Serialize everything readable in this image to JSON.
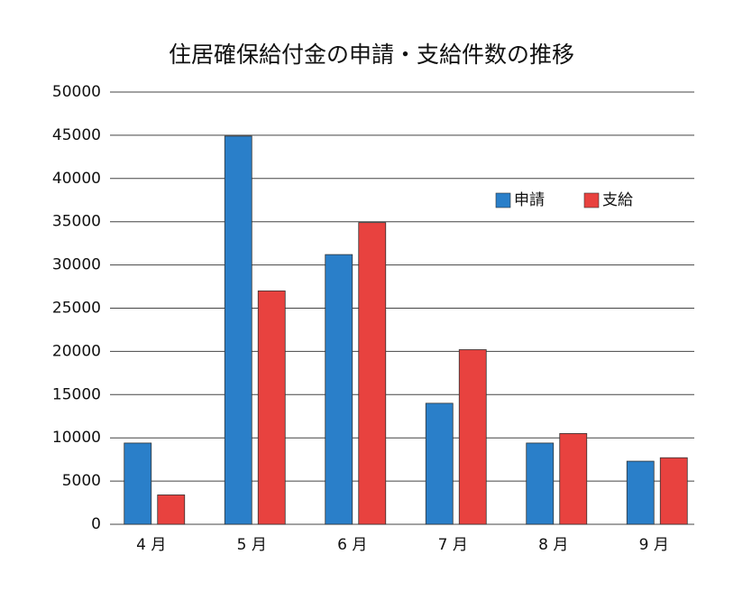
{
  "chart_data": {
    "type": "bar",
    "title": "住居確保給付金の申請・支給件数の推移",
    "categories": [
      "4 月",
      "5 月",
      "6 月",
      "7 月",
      "8 月",
      "9 月"
    ],
    "series": [
      {
        "name": "申請",
        "color": "#2a7fc9",
        "values": [
          9400,
          44900,
          31200,
          14000,
          9400,
          7300
        ]
      },
      {
        "name": "支給",
        "color": "#e8423f",
        "values": [
          3400,
          27000,
          34900,
          20200,
          10500,
          7700
        ]
      }
    ],
    "ylim": [
      0,
      50000
    ],
    "yticks": [
      0,
      5000,
      10000,
      15000,
      20000,
      25000,
      30000,
      35000,
      40000,
      45000,
      50000
    ],
    "grid": true,
    "legend": "upper-right"
  }
}
